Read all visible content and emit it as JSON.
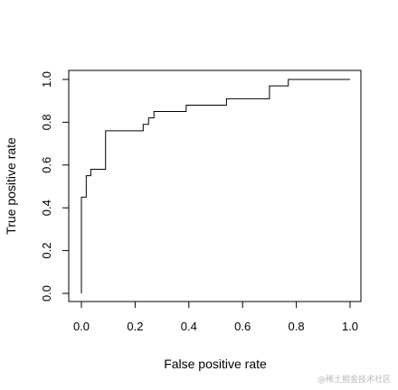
{
  "chart_data": {
    "type": "line",
    "title": "",
    "xlabel": "False positive rate",
    "ylabel": "True positive rate",
    "xlim": [
      0,
      1
    ],
    "ylim": [
      0,
      1
    ],
    "x_ticks": [
      "0.0",
      "0.2",
      "0.4",
      "0.6",
      "0.8",
      "1.0"
    ],
    "y_ticks": [
      "0.0",
      "0.2",
      "0.4",
      "0.6",
      "0.8",
      "1.0"
    ],
    "grid": false,
    "line_color": "#000000",
    "series": [
      {
        "x": [
          0,
          0,
          0.003,
          0.003,
          0.018,
          0.018,
          0.035,
          0.035,
          0.09,
          0.09,
          0.23,
          0.23,
          0.25,
          0.25,
          0.27,
          0.27,
          0.39,
          0.39,
          0.54,
          0.54,
          0.7,
          0.7,
          0.77,
          0.77,
          1.0
        ],
        "y": [
          0,
          0.45,
          0.45,
          0.45,
          0.45,
          0.55,
          0.55,
          0.58,
          0.58,
          0.76,
          0.76,
          0.79,
          0.79,
          0.82,
          0.82,
          0.85,
          0.85,
          0.88,
          0.88,
          0.91,
          0.91,
          0.97,
          0.97,
          1.0,
          1.0
        ]
      }
    ]
  },
  "watermark": "@稀土掘金技术社区"
}
